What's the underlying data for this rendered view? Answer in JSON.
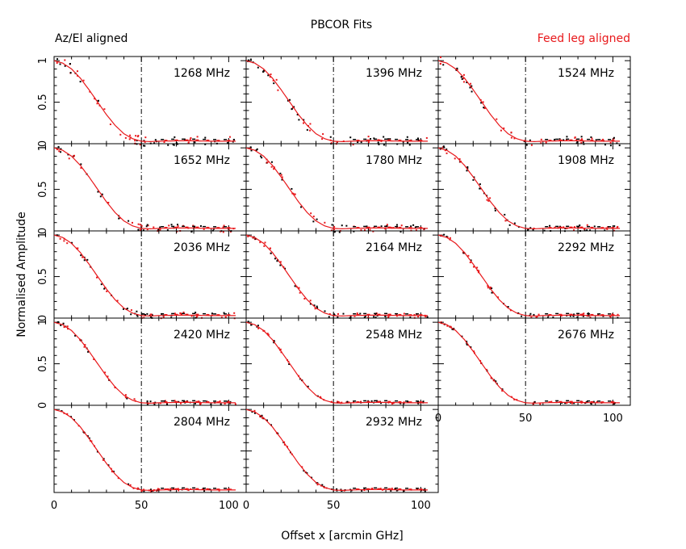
{
  "title": "PBCOR Fits",
  "legend": {
    "left": "Az/El aligned",
    "right": "Feed leg aligned",
    "left_color": "#000000",
    "right_color": "#e8181b"
  },
  "xlabel": "Offset x [arcmin GHz]",
  "ylabel": "Normalised Amplitude",
  "chart_data": {
    "type": "scatter",
    "layout": "small-multiples 5 rows x 3 columns",
    "title": "PBCOR Fits",
    "xlabel": "Offset x [arcmin GHz]",
    "ylabel": "Normalised Amplitude",
    "xlim": [
      0,
      110
    ],
    "ylim": [
      0,
      1.05
    ],
    "x_ticks": [
      0,
      50,
      100
    ],
    "y_ticks": [
      0,
      0.5,
      1
    ],
    "y_tick_labels": [
      "0",
      "0.5",
      "1"
    ],
    "vertical_reference_line_x": 50,
    "series": [
      {
        "name": "Az/El aligned",
        "color": "#000000",
        "marker": "dots"
      },
      {
        "name": "Feed leg aligned",
        "color": "#e8181b",
        "marker": "dots + fitted curve"
      }
    ],
    "fit_curve": {
      "x": [
        0,
        5,
        10,
        15,
        20,
        25,
        30,
        35,
        40,
        45,
        50,
        55,
        60,
        70,
        80,
        90,
        100,
        110
      ],
      "y": [
        1.0,
        0.97,
        0.9,
        0.79,
        0.65,
        0.5,
        0.35,
        0.22,
        0.12,
        0.06,
        0.03,
        0.025,
        0.03,
        0.035,
        0.035,
        0.03,
        0.03,
        0.03
      ]
    },
    "panels": [
      {
        "label": "1268 MHz"
      },
      {
        "label": "1396 MHz"
      },
      {
        "label": "1524 MHz"
      },
      {
        "label": "1652 MHz"
      },
      {
        "label": "1780 MHz"
      },
      {
        "label": "1908 MHz"
      },
      {
        "label": "2036 MHz"
      },
      {
        "label": "2164 MHz"
      },
      {
        "label": "2292 MHz"
      },
      {
        "label": "2420 MHz"
      },
      {
        "label": "2548 MHz"
      },
      {
        "label": "2676 MHz"
      },
      {
        "label": "2804 MHz"
      },
      {
        "label": "2932 MHz"
      }
    ]
  }
}
